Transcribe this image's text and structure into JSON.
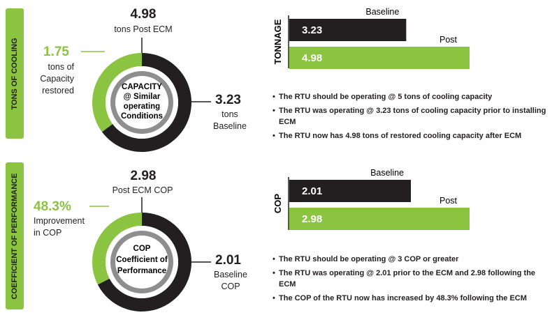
{
  "side_tabs": {
    "top": "TONS OF COOLING",
    "bottom": "COEFFICIENT OF PERFORMANCE"
  },
  "colors": {
    "green": "#8bc441",
    "dark": "#231f20",
    "gray": "#8e8e8e"
  },
  "capacity": {
    "post_value": "4.98",
    "post_label": "tons Post ECM",
    "restored_value": "1.75",
    "restored_label_lines": [
      "tons of",
      "Capacity",
      "restored"
    ],
    "baseline_value": "3.23",
    "baseline_label_lines": [
      "tons",
      "Baseline"
    ],
    "center_lines": [
      "CAPACITY",
      "@ Similar",
      "operating",
      "Conditions"
    ],
    "bullets": [
      "The RTU should be operating @ 5 tons of cooling capacity",
      "The RTU was operating @ 3.23 tons of cooling capacity prior to installing ECM",
      "The RTU now has 4.98 tons of restored cooling capacity after ECM"
    ]
  },
  "cop": {
    "post_value": "2.98",
    "post_label": "Post ECM COP",
    "improvement_value": "48.3%",
    "improvement_label_lines": [
      "Improvement",
      "in COP"
    ],
    "baseline_value": "2.01",
    "baseline_label_lines": [
      "Baseline",
      "COP"
    ],
    "center_lines": [
      "COP",
      "Coefficient of",
      "Performance"
    ],
    "bullets": [
      "The RTU should be operating @ 3 COP or greater",
      "The RTU was operating @ 2.01 prior to the ECM and 2.98 following the ECM",
      "The COP of the RTU now has increased by 48.3% following the ECM"
    ]
  },
  "chart_data": [
    {
      "type": "pie",
      "title": "CAPACITY @ Similar operating Conditions",
      "slices": [
        {
          "name": "Baseline",
          "value": 3.23,
          "color": "#231f20"
        },
        {
          "name": "Capacity restored",
          "value": 1.75,
          "color": "#8bc441"
        }
      ],
      "total": 4.98
    },
    {
      "type": "bar",
      "orientation": "horizontal",
      "ylabel": "TONNAGE",
      "categories": [
        "Baseline",
        "Post"
      ],
      "values": [
        3.23,
        4.98
      ],
      "value_labels": [
        "3.23",
        "4.98"
      ],
      "colors": [
        "#231f20",
        "#8bc441"
      ]
    },
    {
      "type": "pie",
      "title": "COP Coefficient of Performance",
      "slices": [
        {
          "name": "Baseline",
          "value": 2.01,
          "color": "#231f20"
        },
        {
          "name": "Improvement",
          "value": 0.97,
          "color": "#8bc441"
        }
      ],
      "total": 2.98
    },
    {
      "type": "bar",
      "orientation": "horizontal",
      "ylabel": "COP",
      "categories": [
        "Baseline",
        "Post"
      ],
      "values": [
        2.01,
        2.98
      ],
      "value_labels": [
        "2.01",
        "2.98"
      ],
      "colors": [
        "#231f20",
        "#8bc441"
      ]
    }
  ]
}
